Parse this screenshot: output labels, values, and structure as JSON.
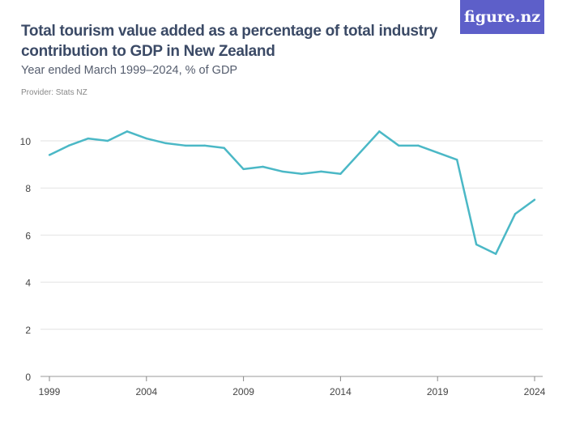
{
  "header": {
    "title": "Total tourism value added as a percentage of total industry contribution to GDP in New Zealand",
    "subtitle": "Year ended March 1999–2024, % of GDP",
    "provider": "Provider: Stats NZ",
    "logo": "figure.nz"
  },
  "chart_data": {
    "type": "line",
    "title": "Total tourism value added as a percentage of total industry contribution to GDP in New Zealand",
    "subtitle": "Year ended March 1999–2024, % of GDP",
    "x": [
      1999,
      2000,
      2001,
      2002,
      2003,
      2004,
      2005,
      2006,
      2007,
      2008,
      2009,
      2010,
      2011,
      2012,
      2013,
      2014,
      2015,
      2016,
      2017,
      2018,
      2019,
      2020,
      2021,
      2022,
      2023,
      2024
    ],
    "series": [
      {
        "values": [
          9.4,
          9.8,
          10.1,
          10.0,
          10.4,
          10.1,
          9.9,
          9.8,
          9.8,
          9.7,
          8.8,
          8.9,
          8.7,
          8.6,
          8.7,
          8.6,
          9.5,
          10.4,
          9.8,
          9.8,
          9.5,
          9.2,
          5.6,
          5.2,
          6.9,
          7.5
        ],
        "color": "#4bb8c6"
      }
    ],
    "xticks": [
      "1999",
      "2004",
      "2009",
      "2014",
      "2019",
      "2024"
    ],
    "yticks": [
      "0",
      "2",
      "4",
      "6",
      "8",
      "10"
    ],
    "xlim": [
      1999,
      2024
    ],
    "ylim": [
      0,
      10
    ],
    "grid": true,
    "legend": "none"
  }
}
